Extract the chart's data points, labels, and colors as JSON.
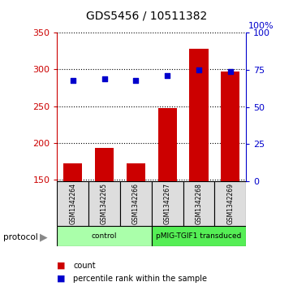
{
  "title": "GDS5456 / 10511382",
  "samples": [
    "GSM1342264",
    "GSM1342265",
    "GSM1342266",
    "GSM1342267",
    "GSM1342268",
    "GSM1342269"
  ],
  "counts": [
    172,
    193,
    172,
    247,
    328,
    297
  ],
  "percentiles": [
    68,
    69,
    68,
    71,
    75,
    74
  ],
  "ylim_left": [
    148,
    350
  ],
  "ylim_right": [
    0,
    100
  ],
  "yticks_left": [
    150,
    200,
    250,
    300,
    350
  ],
  "yticks_right": [
    0,
    25,
    50,
    75,
    100
  ],
  "bar_color": "#cc0000",
  "scatter_color": "#0000cc",
  "bar_width": 0.6,
  "protocol_groups": [
    {
      "label": "control",
      "color": "#aaffaa",
      "start": 0,
      "end": 3
    },
    {
      "label": "pMIG-TGIF1 transduced",
      "color": "#55ee55",
      "start": 3,
      "end": 6
    }
  ],
  "xlabel_color": "#cc0000",
  "ylabel_right_color": "#0000cc",
  "background_color": "#ffffff",
  "sample_box_color": "#dddddd"
}
